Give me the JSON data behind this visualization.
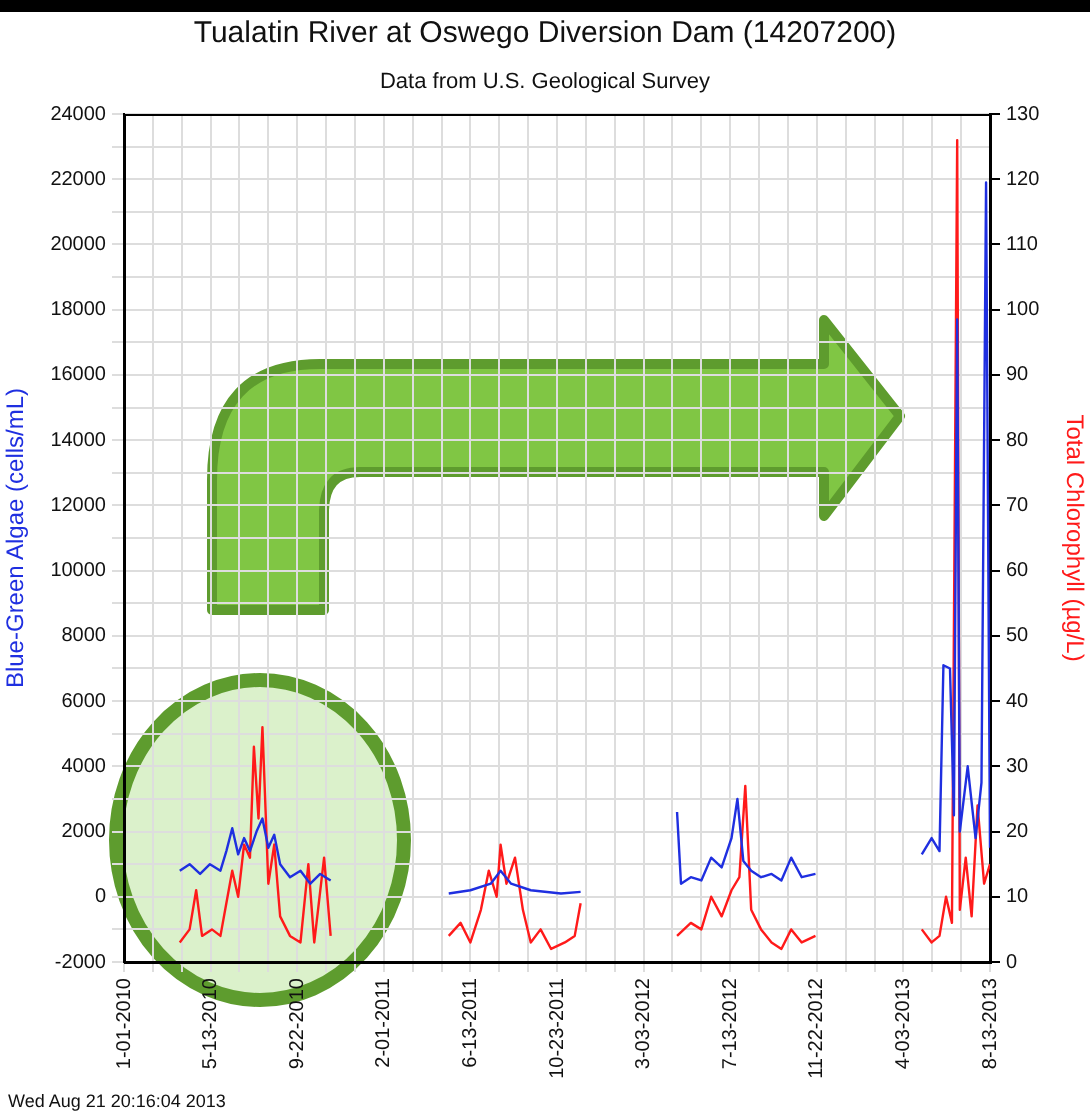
{
  "chart_data": {
    "type": "line",
    "title": "Tualatin River at Oswego Diversion Dam (14207200)",
    "subtitle": "Data from U.S. Geological Survey",
    "ylabel": "Blue-Green Algae (cells/mL)",
    "y2label": "Total Chlorophyll (µg/L)",
    "annotations": [
      "Wed Aug 21 20:16:04 2013"
    ],
    "series": [
      {
        "name": null,
        "color": "#1f2fe0",
        "axis": "y",
        "x": [
          "2010-03-27",
          "2010-04-11",
          "2010-04-27",
          "2010-05-12",
          "2010-05-28",
          "2010-06-06",
          "2010-06-15",
          "2010-06-24",
          "2010-07-03",
          "2010-07-12",
          "2010-07-22",
          "2010-07-31",
          "2010-08-09",
          "2010-08-18",
          "2010-08-27",
          "2010-09-11",
          "2010-09-27",
          "2010-10-12",
          "2010-10-27",
          "2010-11-12",
          "2011-01-15",
          "2011-05-11",
          "2011-06-13",
          "2011-07-14",
          "2011-07-29",
          "2011-08-14",
          "2011-09-13",
          "2011-10-29",
          "2011-11-28",
          "2012-02-01",
          "2012-04-23",
          "2012-04-29",
          "2012-05-14",
          "2012-05-30",
          "2012-06-14",
          "2012-06-30",
          "2012-07-15",
          "2012-07-24",
          "2012-08-02",
          "2012-08-14",
          "2012-08-29",
          "2012-09-14",
          "2012-09-29",
          "2012-10-14",
          "2012-10-30",
          "2012-11-20",
          "2013-02-01",
          "2013-05-01",
          "2013-05-16",
          "2013-05-28",
          "2013-06-03",
          "2013-06-13",
          "2013-06-19",
          "2013-06-24",
          "2013-06-28",
          "2013-07-10",
          "2013-07-22",
          "2013-07-31",
          "2013-08-07",
          "2013-08-13"
        ],
        "values": [
          800,
          1000,
          700,
          1000,
          800,
          1400,
          2100,
          1300,
          1800,
          1400,
          2000,
          2400,
          1500,
          1900,
          1000,
          600,
          800,
          400,
          700,
          500,
          null,
          100,
          200,
          400,
          800,
          400,
          200,
          100,
          150,
          null,
          2600,
          400,
          600,
          500,
          1200,
          900,
          1800,
          3000,
          1100,
          800,
          600,
          700,
          500,
          1200,
          600,
          700,
          null,
          1300,
          1800,
          1400,
          7100,
          7000,
          2500,
          17700,
          2000,
          4000,
          1800,
          3500,
          21900,
          1500
        ]
      },
      {
        "name": null,
        "color": "#ff1a1a",
        "axis": "y2",
        "x": [
          "2010-03-27",
          "2010-04-11",
          "2010-04-21",
          "2010-04-30",
          "2010-05-15",
          "2010-05-28",
          "2010-06-06",
          "2010-06-15",
          "2010-06-24",
          "2010-07-03",
          "2010-07-12",
          "2010-07-18",
          "2010-07-25",
          "2010-07-31",
          "2010-08-09",
          "2010-08-18",
          "2010-08-27",
          "2010-09-11",
          "2010-09-27",
          "2010-10-09",
          "2010-10-18",
          "2010-11-02",
          "2010-11-12",
          "2011-01-15",
          "2011-05-11",
          "2011-05-29",
          "2011-06-13",
          "2011-06-29",
          "2011-07-11",
          "2011-07-23",
          "2011-07-29",
          "2011-08-07",
          "2011-08-20",
          "2011-09-01",
          "2011-09-13",
          "2011-09-28",
          "2011-10-14",
          "2011-11-04",
          "2011-11-19",
          "2011-11-28",
          "2012-02-01",
          "2012-04-23",
          "2012-05-14",
          "2012-05-30",
          "2012-06-14",
          "2012-06-30",
          "2012-07-15",
          "2012-07-27",
          "2012-08-05",
          "2012-08-14",
          "2012-08-29",
          "2012-09-14",
          "2012-09-29",
          "2012-10-14",
          "2012-10-30",
          "2012-11-20",
          "2013-02-01",
          "2013-05-01",
          "2013-05-16",
          "2013-05-28",
          "2013-06-07",
          "2013-06-16",
          "2013-06-24",
          "2013-06-28",
          "2013-07-07",
          "2013-07-16",
          "2013-07-25",
          "2013-08-04",
          "2013-08-13"
        ],
        "values": [
          3,
          5,
          11,
          4,
          5,
          4,
          9,
          14,
          10,
          18,
          16,
          33,
          22,
          36,
          12,
          18,
          7,
          4,
          3,
          15,
          3,
          16,
          4,
          null,
          4,
          6,
          3,
          8,
          14,
          10,
          18,
          12,
          16,
          8,
          3,
          5,
          2,
          3,
          4,
          9,
          null,
          4,
          6,
          5,
          10,
          7,
          11,
          13,
          27,
          8,
          5,
          3,
          2,
          5,
          3,
          4,
          null,
          5,
          3,
          4,
          10,
          6,
          126,
          8,
          16,
          7,
          24,
          12,
          15
        ]
      }
    ],
    "xlim": [
      "2010-01-01",
      "2013-08-13"
    ],
    "xticks": [
      {
        "value": "2010-01-01",
        "label": "1-01-2010"
      },
      {
        "value": "2010-02-14",
        "label": null
      },
      {
        "value": "2010-03-30",
        "label": null
      },
      {
        "value": "2010-05-13",
        "label": "5-13-2010"
      },
      {
        "value": "2010-06-26",
        "label": null
      },
      {
        "value": "2010-08-09",
        "label": null
      },
      {
        "value": "2010-09-22",
        "label": "9-22-2010"
      },
      {
        "value": "2010-11-05",
        "label": null
      },
      {
        "value": "2010-12-19",
        "label": null
      },
      {
        "value": "2011-02-01",
        "label": "2-01-2011"
      },
      {
        "value": "2011-03-17",
        "label": null
      },
      {
        "value": "2011-04-30",
        "label": null
      },
      {
        "value": "2011-06-13",
        "label": "6-13-2011"
      },
      {
        "value": "2011-07-27",
        "label": null
      },
      {
        "value": "2011-09-09",
        "label": null
      },
      {
        "value": "2011-10-23",
        "label": "10-23-2011"
      },
      {
        "value": "2011-12-06",
        "label": null
      },
      {
        "value": "2012-01-19",
        "label": null
      },
      {
        "value": "2012-03-03",
        "label": "3-03-2012"
      },
      {
        "value": "2012-04-16",
        "label": null
      },
      {
        "value": "2012-05-30",
        "label": null
      },
      {
        "value": "2012-07-13",
        "label": "7-13-2012"
      },
      {
        "value": "2012-08-26",
        "label": null
      },
      {
        "value": "2012-10-09",
        "label": null
      },
      {
        "value": "2012-11-22",
        "label": "11-22-2012"
      },
      {
        "value": "2013-01-05",
        "label": null
      },
      {
        "value": "2013-02-18",
        "label": null
      },
      {
        "value": "2013-04-03",
        "label": "4-03-2013"
      },
      {
        "value": "2013-05-17",
        "label": null
      },
      {
        "value": "2013-06-30",
        "label": null
      },
      {
        "value": "2013-08-13",
        "label": "8-13-2013"
      }
    ],
    "ylim": [
      -2000,
      24000
    ],
    "yticks": [
      -2000,
      {
        "value": -1000,
        "label": null
      },
      0,
      {
        "value": 1000,
        "label": null
      },
      2000,
      {
        "value": 3000,
        "label": null
      },
      4000,
      {
        "value": 5000,
        "label": null
      },
      6000,
      {
        "value": 7000,
        "label": null
      },
      8000,
      {
        "value": 9000,
        "label": null
      },
      10000,
      {
        "value": 11000,
        "label": null
      },
      12000,
      {
        "value": 13000,
        "label": null
      },
      14000,
      {
        "value": 15000,
        "label": null
      },
      16000,
      {
        "value": 17000,
        "label": null
      },
      18000,
      {
        "value": 19000,
        "label": null
      },
      20000,
      {
        "value": 21000,
        "label": null
      },
      22000,
      {
        "value": 23000,
        "label": null
      },
      24000
    ],
    "y2lim": [
      0,
      130
    ],
    "y2ticks": [
      0,
      10,
      20,
      30,
      40,
      50,
      60,
      70,
      80,
      90,
      100,
      110,
      120,
      130
    ],
    "grid": true,
    "legend": false,
    "marker": "none",
    "line_style": "solid"
  }
}
